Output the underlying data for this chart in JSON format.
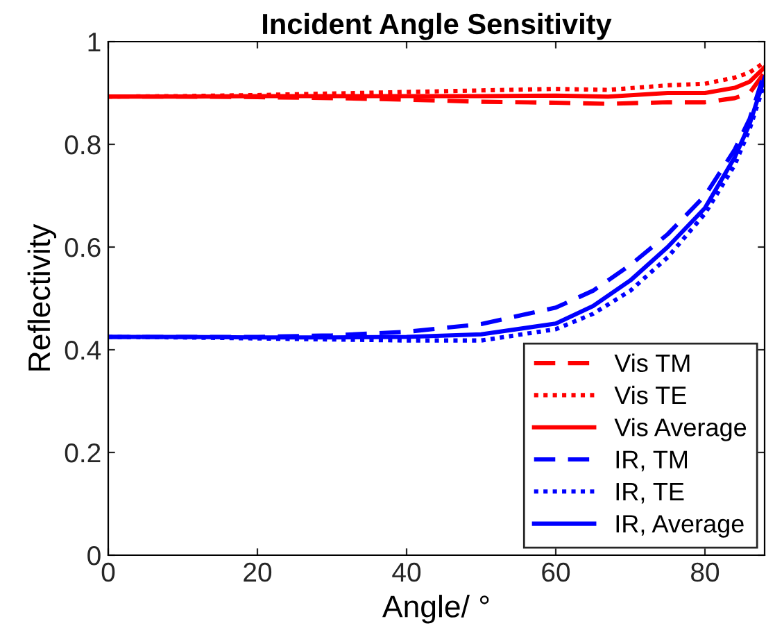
{
  "chart_data": {
    "type": "line",
    "title": "Incident Angle Sensitivity",
    "xlabel": "Angle/ °",
    "ylabel": "Reflectivity",
    "xlim": [
      0,
      88
    ],
    "ylim": [
      0,
      1
    ],
    "xticks": [
      0,
      20,
      40,
      60,
      80
    ],
    "yticks": [
      0,
      0.2,
      0.4,
      0.6,
      0.8,
      1
    ],
    "grid": false,
    "legend": "bottom right",
    "series": [
      {
        "name": "Vis TM",
        "color": "#ff0000",
        "line_style": "dashed",
        "x": [
          0,
          10,
          20,
          30,
          40,
          50,
          60,
          67,
          75,
          80,
          84,
          86,
          88
        ],
        "values": [
          0.893,
          0.893,
          0.892,
          0.89,
          0.887,
          0.883,
          0.881,
          0.879,
          0.882,
          0.882,
          0.89,
          0.9,
          0.94
        ]
      },
      {
        "name": "Vis TE",
        "color": "#ff0000",
        "line_style": "dotted",
        "x": [
          0,
          10,
          20,
          30,
          40,
          50,
          60,
          67,
          75,
          80,
          84,
          86,
          88
        ],
        "values": [
          0.893,
          0.894,
          0.896,
          0.899,
          0.902,
          0.905,
          0.908,
          0.906,
          0.915,
          0.918,
          0.93,
          0.94,
          0.96
        ]
      },
      {
        "name": "Vis Average",
        "color": "#ff0000",
        "line_style": "solid",
        "x": [
          0,
          10,
          20,
          30,
          40,
          50,
          60,
          67,
          75,
          80,
          84,
          86,
          88
        ],
        "values": [
          0.893,
          0.893,
          0.894,
          0.894,
          0.894,
          0.894,
          0.895,
          0.893,
          0.9,
          0.9,
          0.91,
          0.922,
          0.95
        ]
      },
      {
        "name": "IR, TM",
        "color": "#0000ff",
        "line_style": "dashed",
        "x": [
          0,
          10,
          20,
          30,
          40,
          50,
          60,
          65,
          70,
          75,
          80,
          84,
          86,
          88
        ],
        "values": [
          0.425,
          0.425,
          0.425,
          0.428,
          0.435,
          0.45,
          0.482,
          0.515,
          0.565,
          0.625,
          0.7,
          0.79,
          0.85,
          0.94
        ]
      },
      {
        "name": "IR, TE",
        "color": "#0000ff",
        "line_style": "dotted",
        "x": [
          0,
          10,
          20,
          30,
          40,
          50,
          60,
          65,
          70,
          75,
          80,
          84,
          86,
          88
        ],
        "values": [
          0.425,
          0.424,
          0.422,
          0.42,
          0.418,
          0.418,
          0.44,
          0.47,
          0.515,
          0.58,
          0.665,
          0.76,
          0.83,
          0.92
        ]
      },
      {
        "name": "IR, Average",
        "color": "#0000ff",
        "line_style": "solid",
        "x": [
          0,
          10,
          20,
          30,
          40,
          50,
          60,
          65,
          70,
          75,
          80,
          84,
          86,
          88
        ],
        "values": [
          0.425,
          0.425,
          0.424,
          0.424,
          0.425,
          0.43,
          0.451,
          0.485,
          0.535,
          0.6,
          0.676,
          0.775,
          0.84,
          0.93
        ]
      }
    ]
  }
}
